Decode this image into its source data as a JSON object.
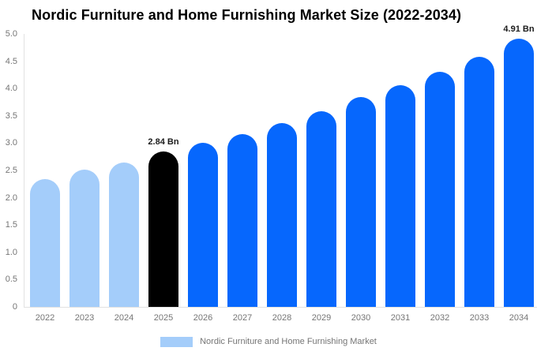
{
  "colors": {
    "historical_bar": "#a4cdfa",
    "highlight_bar": "#000000",
    "forecast_bar": "#0667fd",
    "axis_line": "#e2e2e2",
    "axis_text": "#757575",
    "data_label_text": "#1b1b1b",
    "title_text": "#000000",
    "background": "#ffffff"
  },
  "chart_data": {
    "type": "bar",
    "title": "Nordic Furniture and Home Furnishing Market Size (2022-2034)",
    "unit": "Bn",
    "categories": [
      "2022",
      "2023",
      "2024",
      "2025",
      "2026",
      "2027",
      "2028",
      "2029",
      "2030",
      "2031",
      "2032",
      "2033",
      "2034"
    ],
    "values": [
      2.34,
      2.51,
      2.64,
      2.84,
      3.0,
      3.16,
      3.37,
      3.58,
      3.85,
      4.06,
      4.31,
      4.58,
      4.91
    ],
    "bar_colors": [
      "#a4cdfa",
      "#a4cdfa",
      "#a4cdfa",
      "#000000",
      "#0667fd",
      "#0667fd",
      "#0667fd",
      "#0667fd",
      "#0667fd",
      "#0667fd",
      "#0667fd",
      "#0667fd",
      "#0667fd"
    ],
    "point_labels": [
      null,
      null,
      null,
      "2.84 Bn",
      null,
      null,
      null,
      null,
      null,
      null,
      null,
      null,
      "4.91 Bn"
    ],
    "yticks": [
      "0",
      "0.5",
      "1.0",
      "1.5",
      "2.0",
      "2.5",
      "3.0",
      "3.5",
      "4.0",
      "4.5",
      "5.0"
    ],
    "ylim": [
      0,
      5
    ],
    "xlabel": "",
    "ylabel": "",
    "grid": false,
    "legend_label": "Nordic Furniture and Home Furnishing Market",
    "legend_swatch_color": "#a4cdfa",
    "legend_position": "bottom"
  }
}
